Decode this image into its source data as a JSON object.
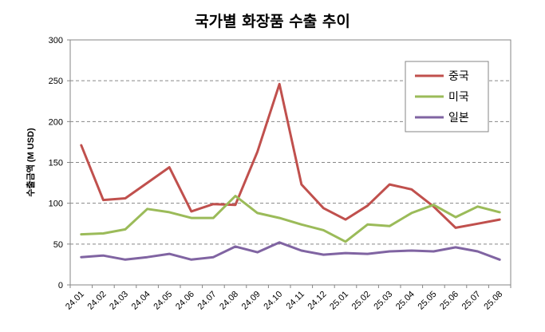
{
  "chart_data": {
    "type": "line",
    "title": "국가별 화장품 수출 추이",
    "xlabel": "",
    "ylabel": "수출금액 (M USD)",
    "ylim": [
      0,
      300
    ],
    "yticks": [
      "0",
      "50",
      "100",
      "150",
      "200",
      "250",
      "300"
    ],
    "categories": [
      "24.01",
      "24.02",
      "24.03",
      "24.04",
      "24.05",
      "24.06",
      "24.07",
      "24.08",
      "24.09",
      "24.10",
      "24.11",
      "24.12",
      "25.01",
      "25.02",
      "25.03",
      "25.04",
      "25.05",
      "25.06",
      "25.07",
      "25.08"
    ],
    "series": [
      {
        "name": "중국",
        "color": "#c0504d",
        "values": [
          171,
          104,
          106,
          125,
          144,
          90,
          99,
          98,
          163,
          246,
          123,
          94,
          80,
          97,
          123,
          117,
          96,
          70,
          75,
          80
        ]
      },
      {
        "name": "미국",
        "color": "#9bbb59",
        "values": [
          62,
          63,
          68,
          93,
          89,
          82,
          82,
          109,
          88,
          82,
          74,
          67,
          53,
          74,
          72,
          88,
          98,
          83,
          96,
          89
        ]
      },
      {
        "name": "일본",
        "color": "#8064a2",
        "values": [
          34,
          36,
          31,
          34,
          38,
          31,
          34,
          47,
          40,
          52,
          42,
          37,
          39,
          38,
          41,
          42,
          41,
          46,
          41,
          31
        ]
      }
    ],
    "legend_position": "top-right",
    "grid": true
  }
}
